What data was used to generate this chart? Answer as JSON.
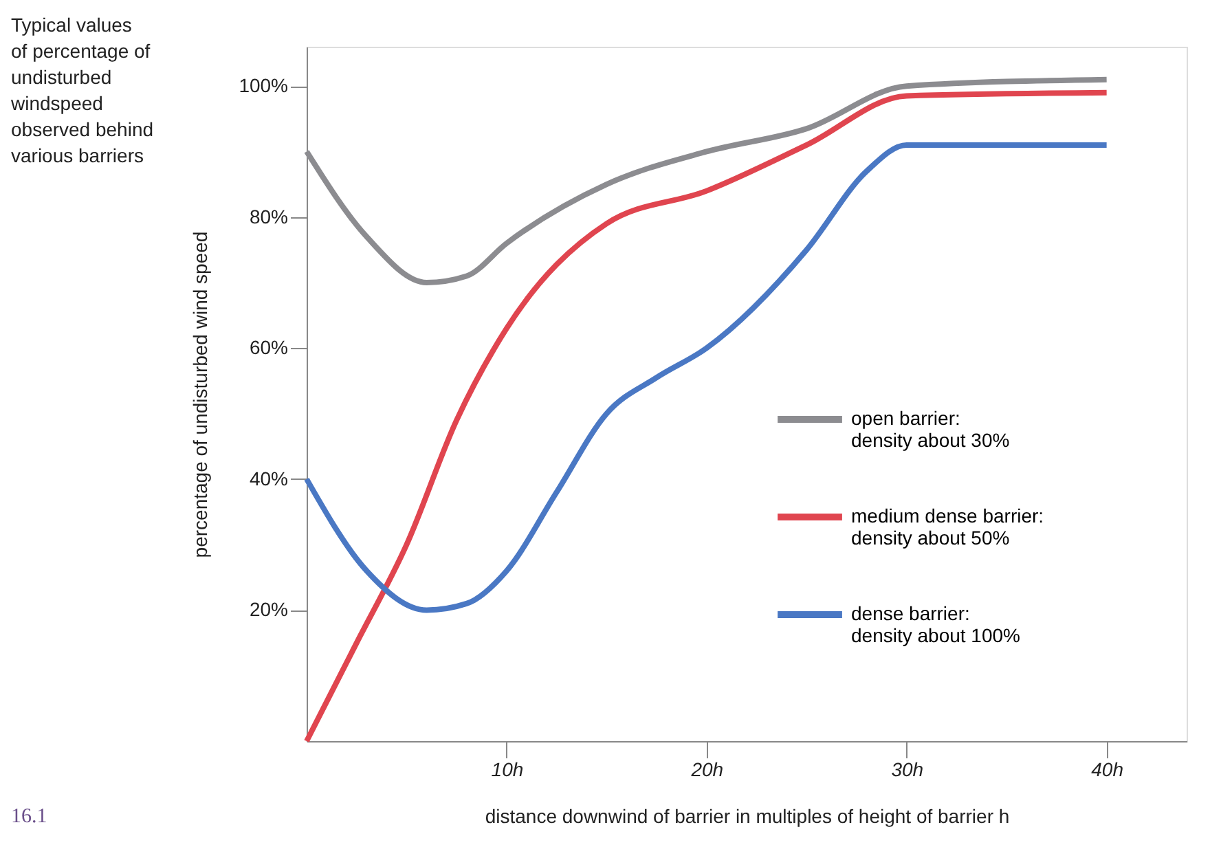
{
  "chart_data": {
    "type": "line",
    "xlabel": "distance downwind of barrier in multiples of height of barrier h",
    "ylabel": "percentage of undisturbed wind speed",
    "annotations": [
      "Typical values of percentage of undisturbed windspeed observed behind various barriers",
      "16.1"
    ],
    "xlim": [
      0,
      44
    ],
    "xticks": [
      {
        "value": 10,
        "label": "10h"
      },
      {
        "value": 20,
        "label": "20h"
      },
      {
        "value": 30,
        "label": "30h"
      },
      {
        "value": 40,
        "label": "40h"
      }
    ],
    "ylim": [
      0,
      106
    ],
    "yticks": [
      {
        "value": 20,
        "label": "20%"
      },
      {
        "value": 40,
        "label": "40%"
      },
      {
        "value": 60,
        "label": "60%"
      },
      {
        "value": 80,
        "label": "80%"
      },
      {
        "value": 100,
        "label": "100%"
      }
    ],
    "grid": false,
    "legend": "right",
    "marker": "none",
    "line_style": "solid",
    "series": [
      {
        "name": "open barrier: density about 30%",
        "color": "#8c8c90",
        "x": [
          0,
          3,
          6,
          8,
          10,
          15,
          20,
          25,
          30,
          40
        ],
        "values": [
          90,
          77,
          70,
          71,
          76,
          85,
          90,
          93.5,
          100,
          101
        ]
      },
      {
        "name": "medium dense barrier: density about 50%",
        "color": "#e0454f",
        "x": [
          0,
          2.5,
          5,
          7.5,
          10,
          15,
          20,
          25,
          30,
          40
        ],
        "values": [
          0,
          15,
          30,
          49,
          63,
          79,
          84,
          91,
          98.5,
          99
        ]
      },
      {
        "name": "dense barrier: density about 100%",
        "color": "#4a78c4",
        "x": [
          0,
          3,
          6,
          8,
          10,
          12.5,
          15,
          17.5,
          20,
          25,
          28,
          30,
          40
        ],
        "values": [
          40,
          26,
          20,
          21,
          26,
          38,
          50,
          55.5,
          60,
          75,
          87,
          91,
          91
        ]
      }
    ]
  }
}
